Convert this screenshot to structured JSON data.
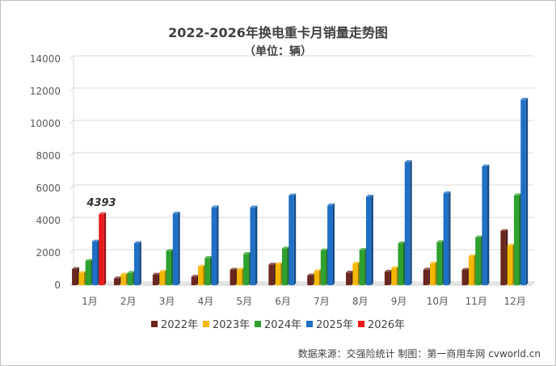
{
  "chart_data": {
    "type": "bar",
    "title": "2022-2026年换电重卡月销量走势图",
    "subtitle": "（单位：辆）",
    "categories": [
      "1月",
      "2月",
      "3月",
      "4月",
      "5月",
      "6月",
      "7月",
      "8月",
      "9月",
      "10月",
      "11月",
      "12月"
    ],
    "ylim": [
      0,
      14000
    ],
    "yticks": [
      0,
      2000,
      4000,
      6000,
      8000,
      10000,
      12000,
      14000
    ],
    "grid": true,
    "legend_position": "bottom",
    "series": [
      {
        "name": "2022年",
        "color": "#6b2620",
        "values": [
          1000,
          420,
          650,
          520,
          950,
          1270,
          600,
          780,
          830,
          960,
          950,
          3350
        ]
      },
      {
        "name": "2023年",
        "color": "#f5b800",
        "values": [
          750,
          650,
          830,
          1150,
          950,
          1300,
          860,
          1330,
          1050,
          1340,
          1780,
          2450
        ]
      },
      {
        "name": "2024年",
        "color": "#2ea12e",
        "values": [
          1500,
          760,
          2120,
          1680,
          1930,
          2270,
          2150,
          2180,
          2590,
          2660,
          2950,
          5560
        ]
      },
      {
        "name": "2025年",
        "color": "#1f6fc5",
        "values": [
          2700,
          2600,
          4430,
          4810,
          4810,
          5550,
          4940,
          5480,
          7620,
          5690,
          7350,
          11480
        ]
      },
      {
        "name": "2026年",
        "color": "#e8191b",
        "values": [
          4393,
          null,
          null,
          null,
          null,
          null,
          null,
          null,
          null,
          null,
          null,
          null
        ]
      }
    ],
    "annotations": [
      {
        "text": "4393"
      }
    ]
  },
  "source_note": "数据来源：交强险统计 制图：第一商用车网 cvworld.cn"
}
